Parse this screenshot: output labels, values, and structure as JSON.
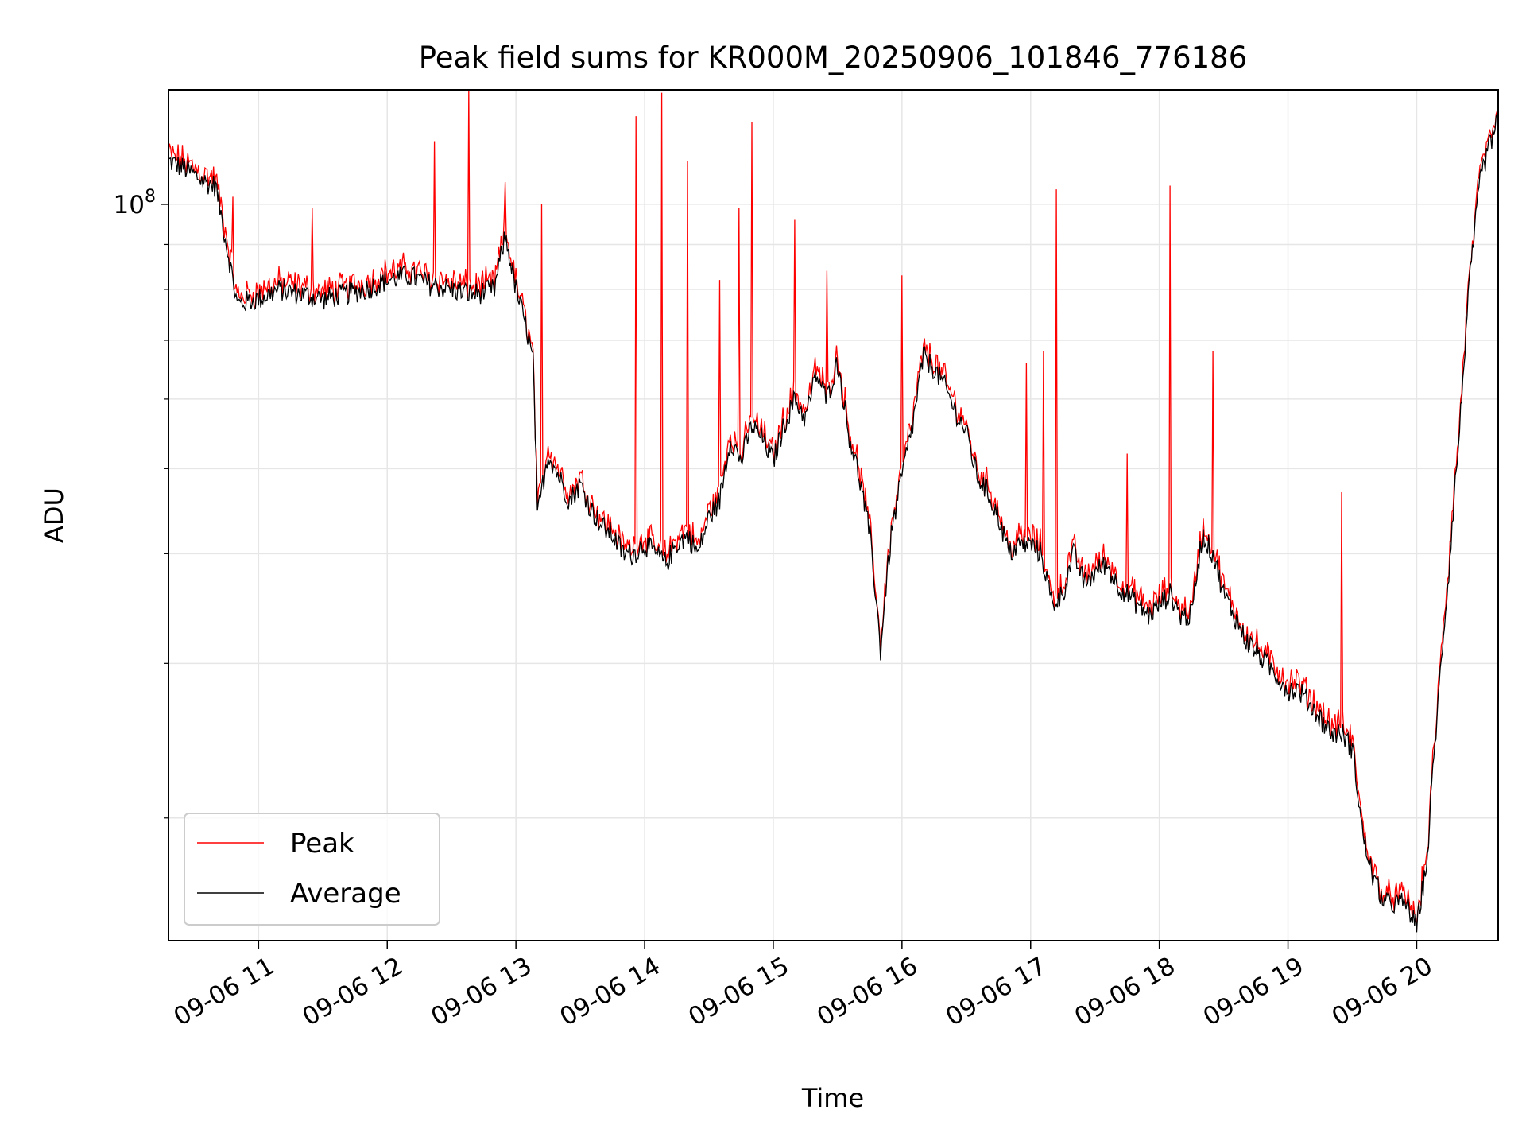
{
  "chart_data": {
    "type": "line",
    "title": "Peak field sums for KR000M_20250906_101846_776186",
    "xlabel": "Time",
    "ylabel": "ADU",
    "y_scale": "log",
    "y_major_tick": {
      "base": "10",
      "exponent": "8",
      "value": 100000000
    },
    "y_minor_ticks": [
      20000000,
      30000000,
      40000000,
      50000000,
      60000000,
      70000000,
      80000000,
      90000000
    ],
    "ylim": [
      14500000,
      135000000
    ],
    "xlim": [
      "2025-09-06 10:18",
      "2025-09-06 20:38"
    ],
    "x_ticks": [
      {
        "time": "2025-09-06 11:00",
        "label": "09-06 11"
      },
      {
        "time": "2025-09-06 12:00",
        "label": "09-06 12"
      },
      {
        "time": "2025-09-06 13:00",
        "label": "09-06 13"
      },
      {
        "time": "2025-09-06 14:00",
        "label": "09-06 14"
      },
      {
        "time": "2025-09-06 15:00",
        "label": "09-06 15"
      },
      {
        "time": "2025-09-06 16:00",
        "label": "09-06 16"
      },
      {
        "time": "2025-09-06 17:00",
        "label": "09-06 17"
      },
      {
        "time": "2025-09-06 18:00",
        "label": "09-06 18"
      },
      {
        "time": "2025-09-06 19:00",
        "label": "09-06 19"
      },
      {
        "time": "2025-09-06 20:00",
        "label": "09-06 20"
      }
    ],
    "grid": true,
    "legend_position": "lower-left",
    "series": [
      {
        "name": "Peak",
        "color": "#ff0000"
      },
      {
        "name": "Average",
        "color": "#000000"
      }
    ],
    "x": [
      "10:18",
      "10:25",
      "10:30",
      "10:35",
      "10:40",
      "10:45",
      "10:50",
      "11:00",
      "11:10",
      "11:20",
      "11:30",
      "11:40",
      "11:50",
      "12:00",
      "12:10",
      "12:20",
      "12:30",
      "12:40",
      "12:50",
      "12:55",
      "13:00",
      "13:05",
      "13:08",
      "13:10",
      "13:15",
      "13:20",
      "13:25",
      "13:30",
      "13:35",
      "13:40",
      "13:45",
      "13:50",
      "13:55",
      "14:00",
      "14:05",
      "14:10",
      "14:15",
      "14:20",
      "14:25",
      "14:30",
      "14:35",
      "14:40",
      "14:45",
      "14:50",
      "14:55",
      "15:00",
      "15:05",
      "15:10",
      "15:15",
      "15:20",
      "15:25",
      "15:30",
      "15:35",
      "15:40",
      "15:45",
      "15:50",
      "15:55",
      "16:00",
      "16:05",
      "16:10",
      "16:15",
      "16:20",
      "16:25",
      "16:30",
      "16:35",
      "16:40",
      "16:45",
      "16:50",
      "16:55",
      "17:00",
      "17:05",
      "17:10",
      "17:15",
      "17:20",
      "17:25",
      "17:30",
      "17:35",
      "17:40",
      "17:45",
      "17:50",
      "17:55",
      "18:00",
      "18:05",
      "18:10",
      "18:15",
      "18:20",
      "18:25",
      "18:30",
      "18:35",
      "18:40",
      "18:45",
      "18:50",
      "18:55",
      "19:00",
      "19:05",
      "19:10",
      "19:15",
      "19:20",
      "19:25",
      "19:30",
      "19:35",
      "19:40",
      "19:45",
      "19:50",
      "19:55",
      "20:00",
      "20:05",
      "20:10",
      "20:15",
      "20:20",
      "20:25",
      "20:30",
      "20:38"
    ],
    "average": [
      112,
      110,
      108,
      106,
      105,
      90,
      77,
      78,
      80,
      79,
      78,
      79,
      80,
      82,
      83,
      81,
      80,
      79,
      80,
      92,
      80,
      72,
      66,
      44,
      52,
      49,
      46,
      48,
      45,
      43,
      42,
      40,
      40,
      41,
      40,
      39,
      41,
      42,
      40,
      44,
      46,
      54,
      51,
      56,
      54,
      51,
      56,
      60,
      57,
      64,
      60,
      66,
      55,
      49,
      42,
      31,
      42,
      49,
      56,
      67,
      65,
      62,
      58,
      55,
      49,
      47,
      44,
      40,
      41,
      41,
      40,
      35,
      36,
      40,
      37,
      38,
      39,
      37,
      36,
      35,
      34,
      35,
      36,
      34,
      34,
      42,
      40,
      36,
      34,
      32,
      31,
      30,
      29,
      28,
      28,
      27,
      26,
      25,
      25,
      24,
      19,
      17,
      16,
      16,
      16,
      15,
      18,
      27,
      38,
      55,
      83,
      108,
      125
    ],
    "peak": [
      114,
      111,
      109,
      107,
      106,
      92,
      78,
      79,
      81,
      80,
      79,
      80,
      81,
      83,
      84,
      82,
      81,
      80,
      81,
      94,
      82,
      73,
      67,
      45,
      53,
      50,
      47,
      49,
      46,
      44,
      43,
      41,
      41,
      42,
      41,
      40,
      42,
      43,
      41,
      45,
      47,
      55,
      52,
      57,
      55,
      52,
      57,
      61,
      58,
      66,
      62,
      67,
      56,
      50,
      43,
      32,
      43,
      50,
      57,
      68,
      66,
      63,
      59,
      56,
      50,
      48,
      45,
      41,
      42,
      42,
      41,
      36,
      37,
      41,
      38,
      39,
      40,
      38,
      37,
      36,
      35,
      36,
      37,
      35,
      35,
      43,
      41,
      37,
      35,
      33,
      32,
      31,
      30,
      29,
      29,
      28,
      27,
      26,
      26,
      25,
      20,
      18,
      17,
      17,
      17,
      16,
      19,
      28,
      39,
      56,
      85,
      110,
      127
    ],
    "peak_spikes": [
      {
        "time": "10:48",
        "value": 102
      },
      {
        "time": "11:25",
        "value": 99
      },
      {
        "time": "12:22",
        "value": 118
      },
      {
        "time": "12:38",
        "value": 135
      },
      {
        "time": "12:55",
        "value": 106
      },
      {
        "time": "13:12",
        "value": 100
      },
      {
        "time": "13:56",
        "value": 126
      },
      {
        "time": "14:08",
        "value": 134
      },
      {
        "time": "14:20",
        "value": 112
      },
      {
        "time": "14:35",
        "value": 82
      },
      {
        "time": "14:44",
        "value": 99
      },
      {
        "time": "14:50",
        "value": 124
      },
      {
        "time": "15:10",
        "value": 96
      },
      {
        "time": "15:25",
        "value": 84
      },
      {
        "time": "16:00",
        "value": 83
      },
      {
        "time": "16:58",
        "value": 66
      },
      {
        "time": "17:06",
        "value": 68
      },
      {
        "time": "17:12",
        "value": 104
      },
      {
        "time": "17:45",
        "value": 52
      },
      {
        "time": "18:05",
        "value": 105
      },
      {
        "time": "18:25",
        "value": 68
      },
      {
        "time": "19:25",
        "value": 47
      }
    ],
    "value_unit_note": "values in millions of ADU"
  }
}
